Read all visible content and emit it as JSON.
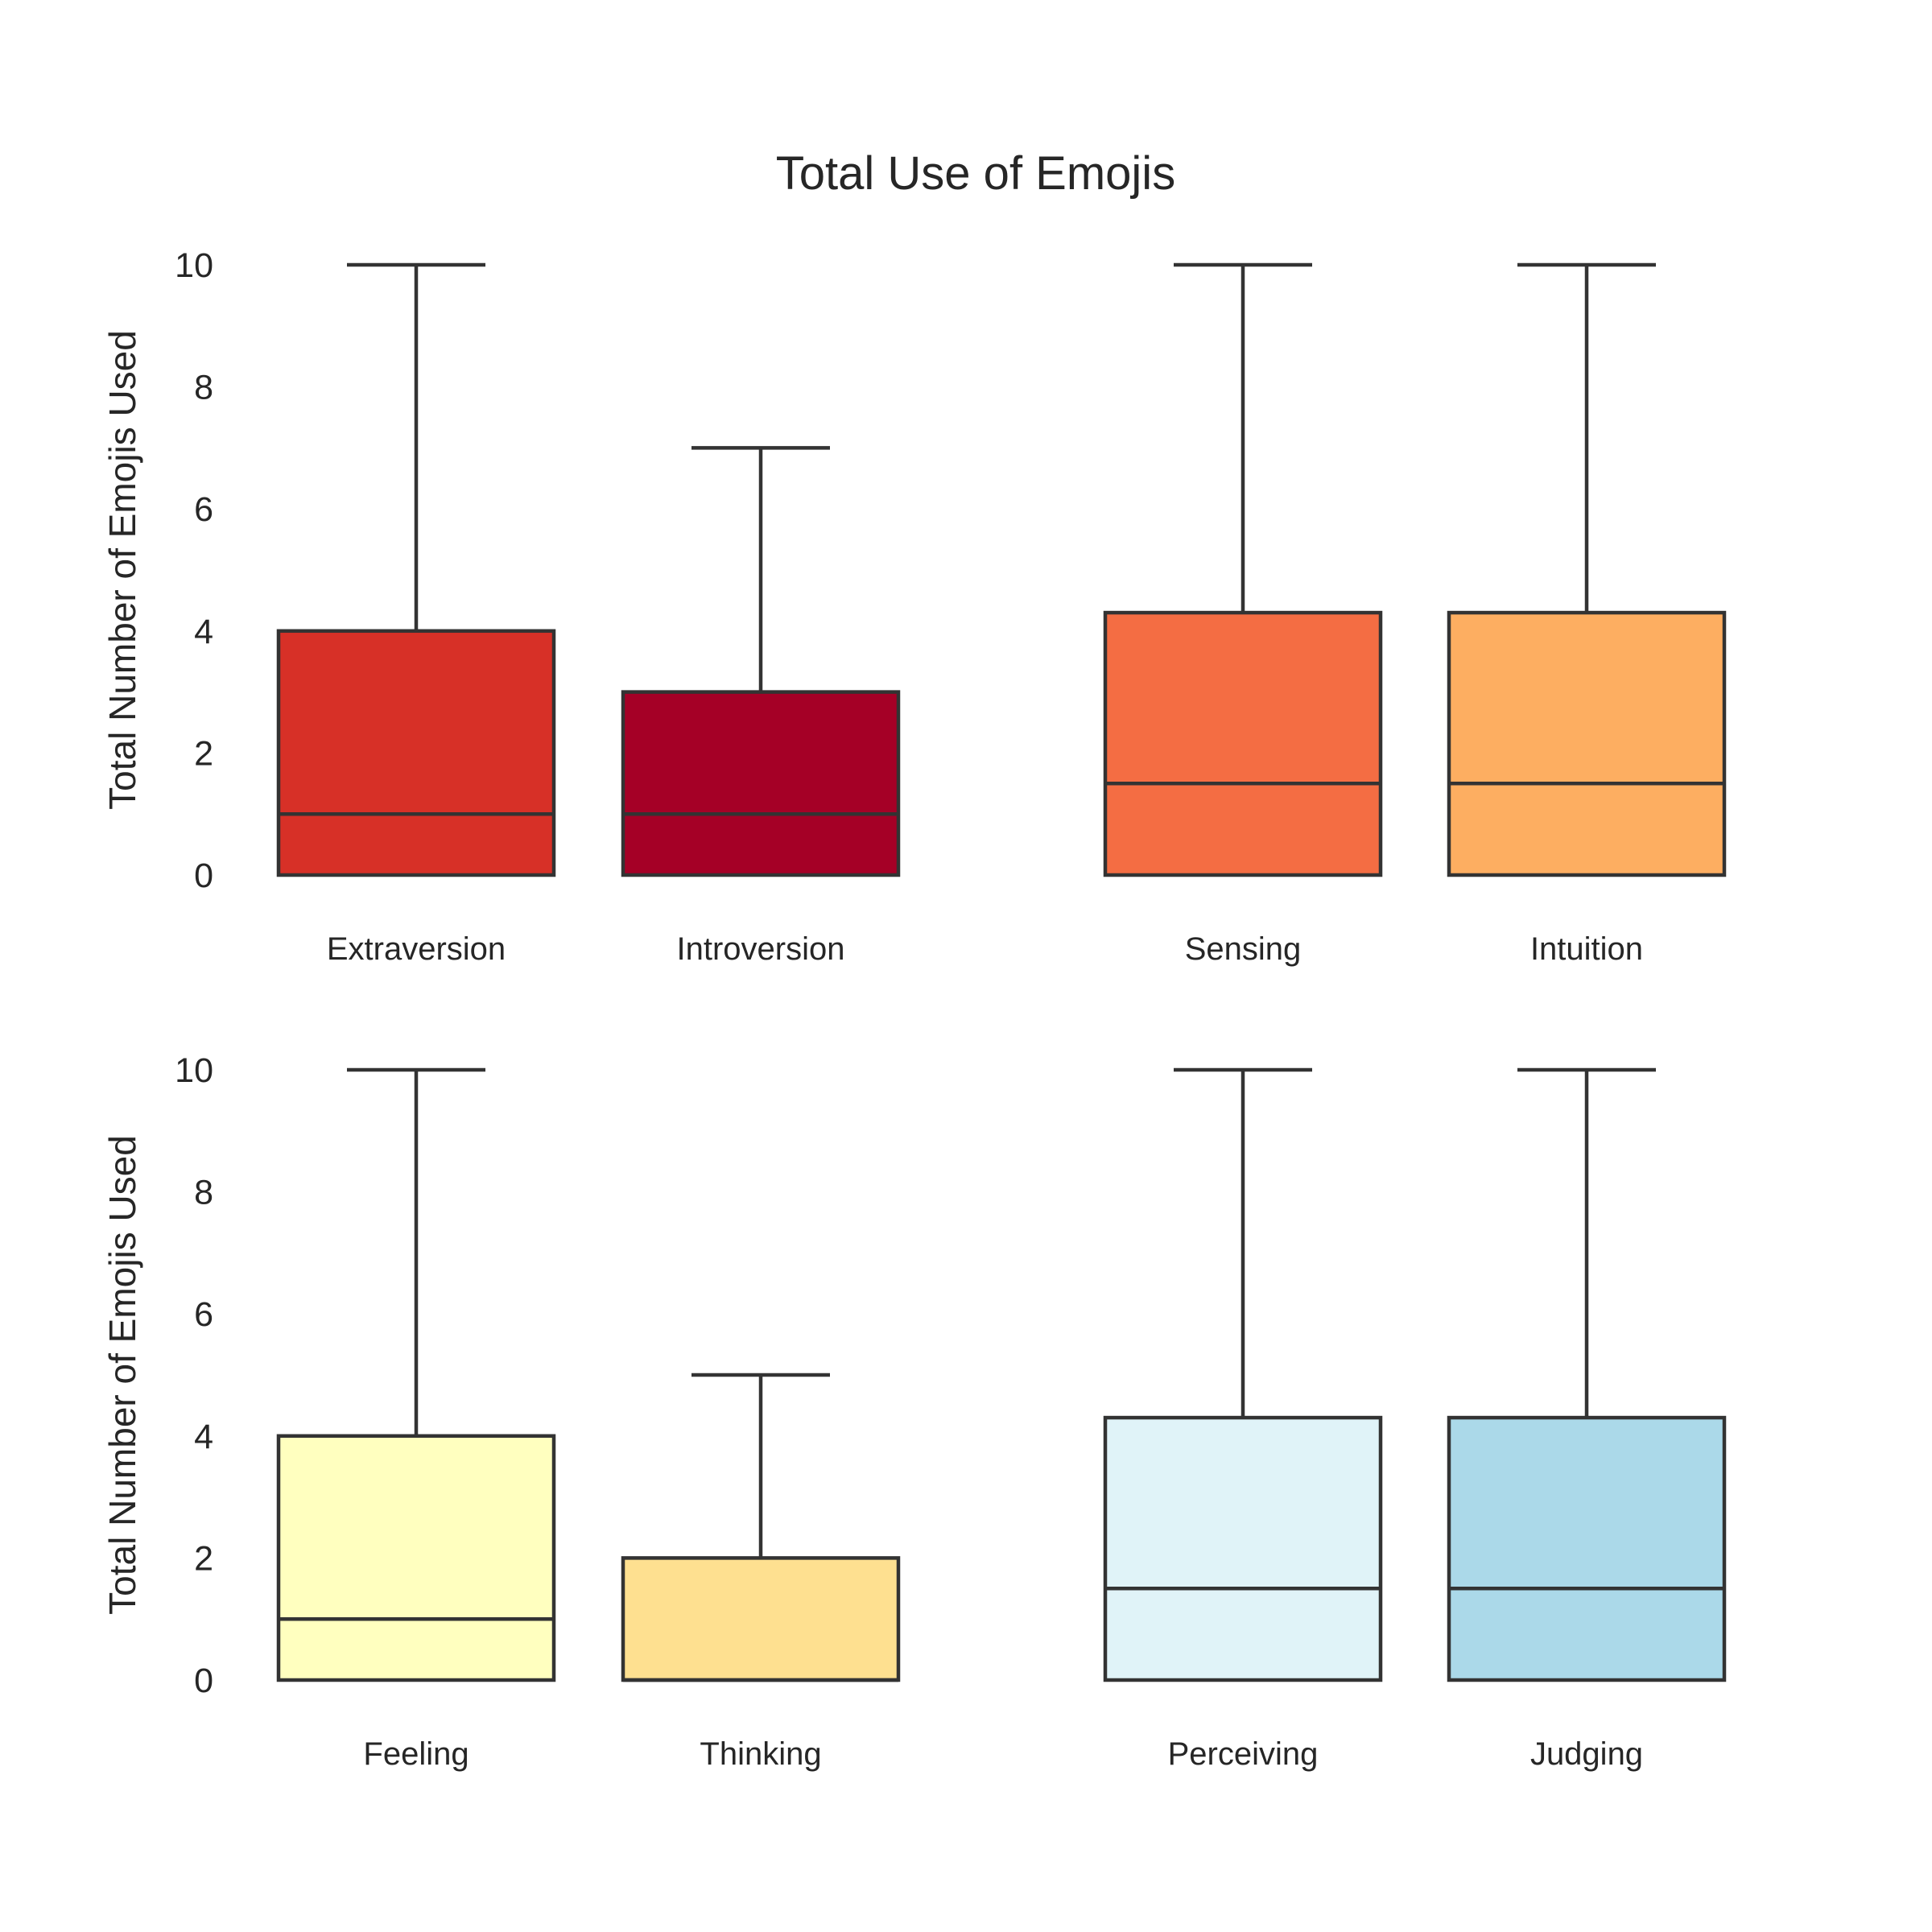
{
  "chart_data": {
    "title": "Total Use of Emojis",
    "type": "box",
    "panels": [
      {
        "ylabel": "Total Number of Emojis Used",
        "ylim": [
          0,
          10
        ],
        "yticks": [
          "0",
          "2",
          "4",
          "6",
          "8",
          "10"
        ],
        "groups": [
          {
            "boxes": [
              {
                "label": "Extraversion",
                "color": "#d73027",
                "min": 0,
                "q1": 0,
                "median": 1,
                "q3": 4,
                "max": 10
              },
              {
                "label": "Introversion",
                "color": "#a50026",
                "min": 0,
                "q1": 0,
                "median": 1,
                "q3": 3,
                "max": 7
              }
            ]
          },
          {
            "boxes": [
              {
                "label": "Sensing",
                "color": "#f46d43",
                "min": 0,
                "q1": 0,
                "median": 1.5,
                "q3": 4.3,
                "max": 10
              },
              {
                "label": "Intuition",
                "color": "#fdae61",
                "min": 0,
                "q1": 0,
                "median": 1.5,
                "q3": 4.3,
                "max": 10
              }
            ]
          }
        ]
      },
      {
        "ylabel": "Total Number of Emojis Used",
        "ylim": [
          0,
          10
        ],
        "yticks": [
          "0",
          "2",
          "4",
          "6",
          "8",
          "10"
        ],
        "groups": [
          {
            "boxes": [
              {
                "label": "Feeling",
                "color": "#ffffbf",
                "min": 0,
                "q1": 0,
                "median": 1,
                "q3": 4,
                "max": 10
              },
              {
                "label": "Thinking",
                "color": "#fee090",
                "min": 0,
                "q1": 0,
                "median": 0,
                "q3": 2,
                "max": 5
              }
            ]
          },
          {
            "boxes": [
              {
                "label": "Perceiving",
                "color": "#e0f3f8",
                "min": 0,
                "q1": 0,
                "median": 1.5,
                "q3": 4.3,
                "max": 10
              },
              {
                "label": "Judging",
                "color": "#abd9e9",
                "min": 0,
                "q1": 0,
                "median": 1.5,
                "q3": 4.3,
                "max": 10
              }
            ]
          }
        ]
      }
    ]
  }
}
